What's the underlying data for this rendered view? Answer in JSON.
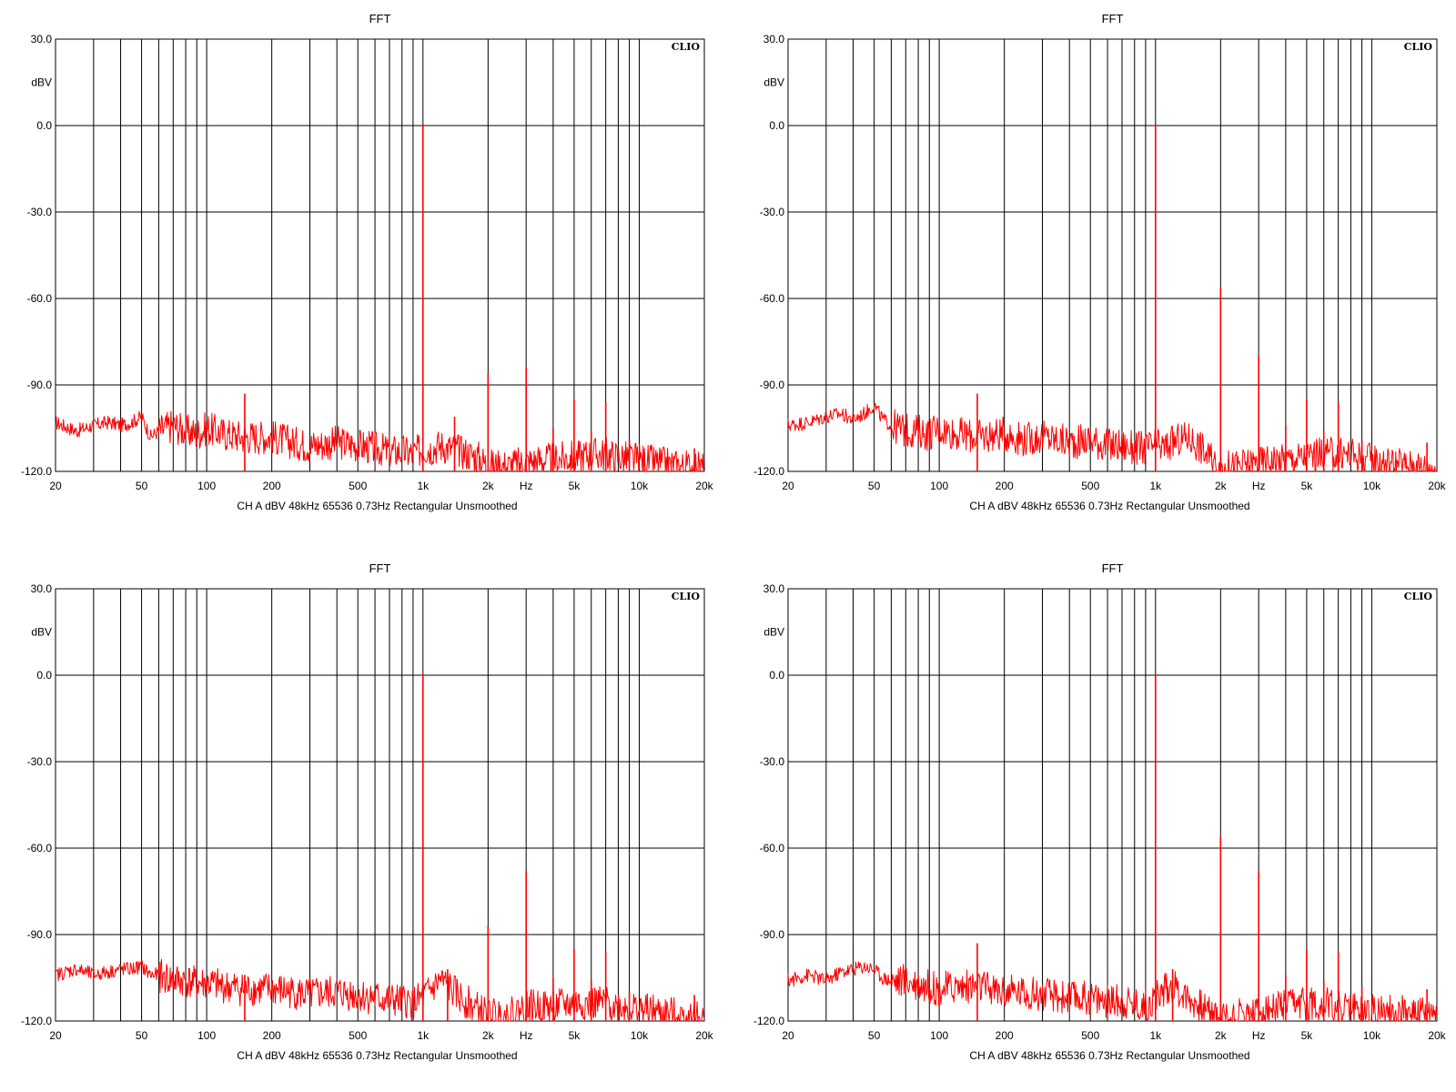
{
  "chart_data": [
    {
      "type": "line",
      "title": "FFT",
      "brand": "CLIO",
      "footer": "CH A   dBV   48kHz   65536   0.73Hz   Rectangular   Unsmoothed",
      "ylabel": "dBV",
      "xlabel": "Hz",
      "xscale": "log",
      "xlim": [
        20,
        20000
      ],
      "ylim": [
        -120,
        30
      ],
      "yticks": [
        30,
        0,
        -30,
        -60,
        -90,
        -120
      ],
      "ytick_labels": [
        "30.0",
        "0.0",
        "-30.0",
        "-60.0",
        "-90.0",
        "-120.0"
      ],
      "xticks": [
        20,
        50,
        100,
        200,
        500,
        1000,
        2000,
        5000,
        10000,
        20000
      ],
      "xtick_labels": [
        "20",
        "50",
        "100",
        "200",
        "500",
        "1k",
        "2k",
        "5k",
        "10k",
        "20k"
      ],
      "grid": true,
      "color": "#ff0000",
      "series": [
        {
          "x": [
            20,
            25,
            30,
            35,
            40,
            45,
            50,
            55,
            60,
            70,
            80,
            90,
            100,
            120,
            150,
            200,
            250,
            300,
            400,
            500,
            600,
            700,
            800,
            900,
            1000,
            1100,
            1200,
            1500,
            1800,
            2000,
            2500,
            3000,
            3500,
            4000,
            5000,
            6000,
            7000,
            8000,
            10000,
            12000,
            15000,
            20000
          ],
          "y": [
            -103,
            -106,
            -104,
            -103,
            -104,
            -103,
            -101,
            -108,
            -106,
            -104,
            -106,
            -107,
            -105,
            -107,
            -108,
            -108,
            -110,
            -111,
            -110,
            -111,
            -112,
            -113,
            -113,
            -114,
            -112,
            -112,
            -111,
            -113,
            -115,
            -118,
            -118,
            -117,
            -116,
            -116,
            -115,
            -114,
            -114,
            -115,
            -116,
            -117,
            -118,
            -119
          ]
        }
      ],
      "peaks": [
        {
          "x": 150,
          "y": -93
        },
        {
          "x": 1000,
          "y": 0.5
        },
        {
          "x": 1400,
          "y": -101
        },
        {
          "x": 2000,
          "y": -86
        },
        {
          "x": 3000,
          "y": -84
        },
        {
          "x": 4000,
          "y": -105
        },
        {
          "x": 5000,
          "y": -95
        },
        {
          "x": 6000,
          "y": -106
        },
        {
          "x": 7000,
          "y": -96
        },
        {
          "x": 9000,
          "y": -109
        },
        {
          "x": 18000,
          "y": -112
        }
      ]
    },
    {
      "type": "line",
      "title": "FFT",
      "brand": "CLIO",
      "footer": "CH A   dBV   48kHz   65536   0.73Hz   Rectangular   Unsmoothed",
      "ylabel": "dBV",
      "xlabel": "Hz",
      "xscale": "log",
      "xlim": [
        20,
        20000
      ],
      "ylim": [
        -120,
        30
      ],
      "yticks": [
        30,
        0,
        -30,
        -60,
        -90,
        -120
      ],
      "ytick_labels": [
        "30.0",
        "0.0",
        "-30.0",
        "-60.0",
        "-90.0",
        "-120.0"
      ],
      "xticks": [
        20,
        50,
        100,
        200,
        500,
        1000,
        2000,
        5000,
        10000,
        20000
      ],
      "xtick_labels": [
        "20",
        "50",
        "100",
        "200",
        "500",
        "1k",
        "2k",
        "5k",
        "10k",
        "20k"
      ],
      "grid": true,
      "color": "#ff0000",
      "series": [
        {
          "x": [
            20,
            25,
            30,
            35,
            40,
            45,
            50,
            55,
            60,
            70,
            80,
            90,
            100,
            120,
            150,
            200,
            250,
            300,
            400,
            500,
            600,
            700,
            800,
            900,
            1000,
            1100,
            1200,
            1400,
            1600,
            1800,
            2000,
            2500,
            3000,
            3500,
            4000,
            5000,
            6000,
            7000,
            8000,
            10000,
            12000,
            15000,
            20000
          ],
          "y": [
            -104,
            -103,
            -101,
            -100,
            -102,
            -100,
            -97,
            -102,
            -104,
            -106,
            -106,
            -107,
            -105,
            -107,
            -108,
            -107,
            -109,
            -108,
            -110,
            -109,
            -111,
            -111,
            -112,
            -112,
            -111,
            -112,
            -110,
            -108,
            -111,
            -116,
            -119,
            -118,
            -117,
            -116,
            -116,
            -115,
            -114,
            -114,
            -114,
            -116,
            -117,
            -118,
            -119
          ]
        }
      ],
      "peaks": [
        {
          "x": 150,
          "y": -93
        },
        {
          "x": 1000,
          "y": 0.5
        },
        {
          "x": 2000,
          "y": -56
        },
        {
          "x": 3000,
          "y": -80
        },
        {
          "x": 4000,
          "y": -104
        },
        {
          "x": 5000,
          "y": -95
        },
        {
          "x": 6000,
          "y": -106
        },
        {
          "x": 7000,
          "y": -96
        },
        {
          "x": 9000,
          "y": -109
        },
        {
          "x": 18000,
          "y": -110
        }
      ]
    },
    {
      "type": "line",
      "title": "FFT",
      "brand": "CLIO",
      "footer": "CH A   dBV   48kHz   65536   0.73Hz   Rectangular   Unsmoothed",
      "ylabel": "dBV",
      "xlabel": "Hz",
      "xscale": "log",
      "xlim": [
        20,
        20000
      ],
      "ylim": [
        -120,
        30
      ],
      "yticks": [
        30,
        0,
        -30,
        -60,
        -90,
        -120
      ],
      "ytick_labels": [
        "30.0",
        "0.0",
        "-30.0",
        "-60.0",
        "-90.0",
        "-120.0"
      ],
      "xticks": [
        20,
        50,
        100,
        200,
        500,
        1000,
        2000,
        5000,
        10000,
        20000
      ],
      "xtick_labels": [
        "20",
        "50",
        "100",
        "200",
        "500",
        "1k",
        "2k",
        "5k",
        "10k",
        "20k"
      ],
      "grid": true,
      "color": "#ff0000",
      "series": [
        {
          "x": [
            20,
            25,
            30,
            35,
            40,
            45,
            50,
            55,
            60,
            70,
            80,
            90,
            100,
            120,
            150,
            200,
            250,
            300,
            400,
            500,
            600,
            700,
            800,
            900,
            1000,
            1100,
            1200,
            1300,
            1500,
            1800,
            2000,
            2500,
            3000,
            3500,
            4000,
            5000,
            6000,
            7000,
            8000,
            10000,
            12000,
            15000,
            20000
          ],
          "y": [
            -104,
            -102,
            -104,
            -103,
            -102,
            -102,
            -101,
            -104,
            -104,
            -106,
            -106,
            -107,
            -107,
            -108,
            -109,
            -109,
            -110,
            -111,
            -110,
            -111,
            -112,
            -113,
            -113,
            -114,
            -112,
            -109,
            -106,
            -108,
            -112,
            -116,
            -118,
            -118,
            -115,
            -115,
            -115,
            -114,
            -114,
            -114,
            -115,
            -116,
            -117,
            -118,
            -119
          ]
        }
      ],
      "peaks": [
        {
          "x": 150,
          "y": -104
        },
        {
          "x": 1000,
          "y": 0.5
        },
        {
          "x": 1300,
          "y": -102
        },
        {
          "x": 2000,
          "y": -87
        },
        {
          "x": 3000,
          "y": -68
        },
        {
          "x": 4000,
          "y": -105
        },
        {
          "x": 5000,
          "y": -95
        },
        {
          "x": 6000,
          "y": -106
        },
        {
          "x": 7000,
          "y": -96
        },
        {
          "x": 9000,
          "y": -110
        },
        {
          "x": 18000,
          "y": -111
        }
      ]
    },
    {
      "type": "line",
      "title": "FFT",
      "brand": "CLIO",
      "footer": "CH A   dBV   48kHz   65536   0.73Hz   Rectangular   Unsmoothed",
      "ylabel": "dBV",
      "xlabel": "Hz",
      "xscale": "log",
      "xlim": [
        20,
        20000
      ],
      "ylim": [
        -120,
        30
      ],
      "yticks": [
        30,
        0,
        -30,
        -60,
        -90,
        -120
      ],
      "ytick_labels": [
        "30.0",
        "0.0",
        "-30.0",
        "-60.0",
        "-90.0",
        "-120.0"
      ],
      "xticks": [
        20,
        50,
        100,
        200,
        500,
        1000,
        2000,
        5000,
        10000,
        20000
      ],
      "xtick_labels": [
        "20",
        "50",
        "100",
        "200",
        "500",
        "1k",
        "2k",
        "5k",
        "10k",
        "20k"
      ],
      "grid": true,
      "color": "#ff0000",
      "series": [
        {
          "x": [
            20,
            25,
            30,
            35,
            40,
            45,
            50,
            55,
            60,
            70,
            80,
            90,
            100,
            120,
            150,
            200,
            250,
            300,
            400,
            500,
            600,
            700,
            800,
            900,
            1000,
            1100,
            1200,
            1300,
            1500,
            1800,
            2000,
            2500,
            3000,
            3500,
            4000,
            5000,
            6000,
            7000,
            8000,
            10000,
            12000,
            15000,
            20000
          ],
          "y": [
            -106,
            -104,
            -106,
            -103,
            -102,
            -101,
            -102,
            -105,
            -106,
            -106,
            -107,
            -108,
            -109,
            -108,
            -108,
            -110,
            -110,
            -111,
            -112,
            -112,
            -113,
            -113,
            -114,
            -115,
            -112,
            -109,
            -108,
            -110,
            -113,
            -117,
            -118,
            -118,
            -117,
            -116,
            -115,
            -114,
            -114,
            -115,
            -116,
            -116,
            -117,
            -117,
            -118
          ]
        }
      ],
      "peaks": [
        {
          "x": 150,
          "y": -93
        },
        {
          "x": 1000,
          "y": 0.5
        },
        {
          "x": 1200,
          "y": -102
        },
        {
          "x": 2000,
          "y": -56
        },
        {
          "x": 3000,
          "y": -68
        },
        {
          "x": 4000,
          "y": -104
        },
        {
          "x": 5000,
          "y": -95
        },
        {
          "x": 6000,
          "y": -106
        },
        {
          "x": 7000,
          "y": -96
        },
        {
          "x": 9000,
          "y": -108
        },
        {
          "x": 18000,
          "y": -109
        }
      ]
    }
  ]
}
